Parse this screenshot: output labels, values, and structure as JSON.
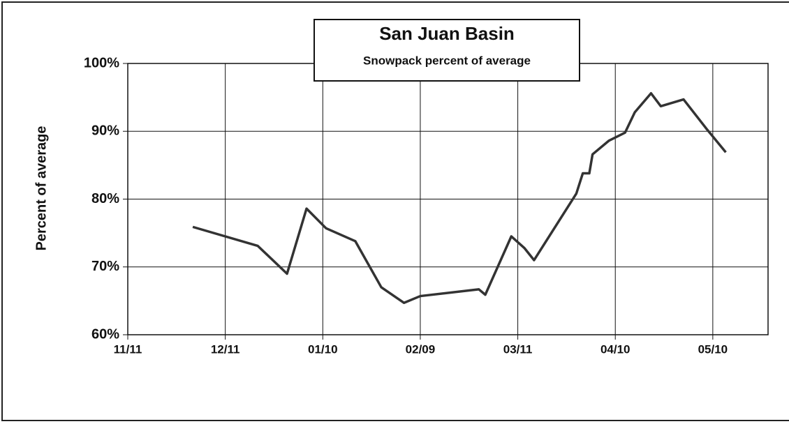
{
  "chart_data": {
    "type": "line",
    "title": "San Juan Basin",
    "subtitle": "Snowpack percent of average",
    "y_label": "Percent of average",
    "x": [
      "12/01",
      "12/21",
      "12/30",
      "01/05",
      "01/11",
      "01/20",
      "01/28",
      "02/04",
      "02/09",
      "02/27",
      "03/01",
      "03/09",
      "03/13",
      "03/16",
      "03/29",
      "03/31",
      "04/02",
      "04/03",
      "04/08",
      "04/13",
      "04/16",
      "04/21",
      "04/24",
      "05/01",
      "05/08",
      "05/14"
    ],
    "series": [
      {
        "name": "Snowpack percent of average",
        "color": "#333333",
        "values": [
          75.9,
          73.1,
          69.0,
          78.6,
          75.7,
          73.8,
          67.0,
          64.7,
          65.7,
          66.7,
          65.9,
          74.5,
          72.8,
          71.0,
          80.8,
          83.8,
          83.8,
          86.6,
          88.6,
          89.8,
          92.8,
          95.6,
          93.7,
          94.7,
          90.4,
          86.9
        ]
      }
    ],
    "xlim": [
      "11/11",
      "05/27"
    ],
    "xticks": [
      "11/11",
      "12/11",
      "01/10",
      "02/09",
      "03/11",
      "04/10",
      "05/10"
    ],
    "ylim": [
      60,
      100
    ],
    "yticks": [
      {
        "value": 60,
        "label": "60%"
      },
      {
        "value": 70,
        "label": "70%"
      },
      {
        "value": 80,
        "label": "80%"
      },
      {
        "value": 90,
        "label": "90%"
      },
      {
        "value": 100,
        "label": "100%"
      }
    ],
    "grid": true
  }
}
